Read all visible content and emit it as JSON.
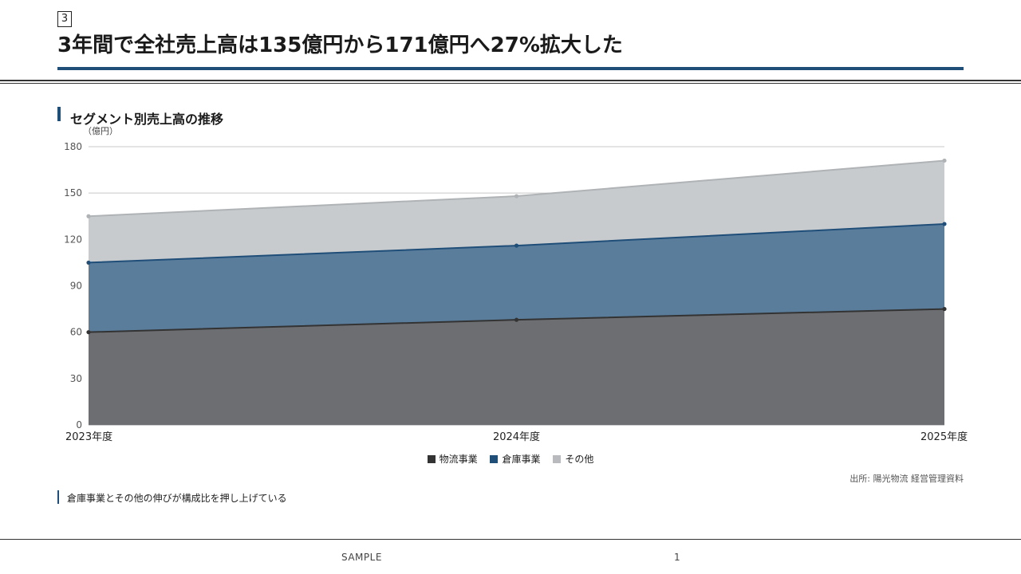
{
  "slide_number": "3",
  "title": "3年間で全社売上高は135億円から171億円へ27%拡大した",
  "section_title": "セグメント別売上高の推移",
  "unit_label": "（億円）",
  "chart_data": {
    "type": "area",
    "stacked": true,
    "categories": [
      "2023年度",
      "2024年度",
      "2025年度"
    ],
    "series": [
      {
        "name": "物流事業",
        "values": [
          60,
          68,
          75
        ],
        "fill": "#6d6e72",
        "line": "#333333"
      },
      {
        "name": "倉庫事業",
        "values": [
          45,
          48,
          55
        ],
        "fill": "#5b7d9c",
        "line": "#1f4e79"
      },
      {
        "name": "その他",
        "values": [
          30,
          32,
          41
        ],
        "fill": "#c8cbce",
        "line": "#b0b3b6"
      }
    ],
    "ylim": [
      0,
      180
    ],
    "yticks": [
      0,
      30,
      60,
      90,
      120,
      150,
      180
    ],
    "grid": true,
    "legend_position": "bottom",
    "legend_swatches": [
      "#333333",
      "#1f4e79",
      "#b8babd"
    ]
  },
  "source": "出所: 陽光物流 経営管理資料",
  "note": "倉庫事業とその他の伸びが構成比を押し上げている",
  "footer": {
    "label": "SAMPLE",
    "page": "1"
  }
}
